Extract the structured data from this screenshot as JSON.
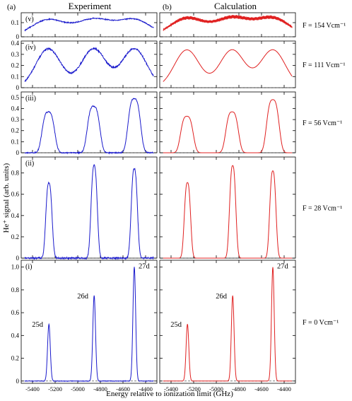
{
  "figure": {
    "left_header": "(a)",
    "left_title": "Experiment",
    "right_header": "(b)",
    "right_title": "Calculation",
    "ylabel": "He⁺ signal (arb. units)",
    "xlabel": "Energy relative to ionization limit (GHz)"
  },
  "colors": {
    "experiment": "#1a1acc",
    "calculation": "#e02020",
    "baseline": "#555555"
  },
  "chart_data": {
    "type": "line",
    "xlim": [
      -5500,
      -4300
    ],
    "xticks": [
      -5400,
      -5200,
      -5000,
      -4800,
      -4600,
      -4400
    ],
    "xtick_labels": [
      "-5400",
      "-5200",
      "-5000",
      "-4800",
      "-4600",
      "-4400"
    ],
    "columns": [
      "Experiment",
      "Calculation"
    ],
    "panels": [
      {
        "label": "(v)",
        "field": "F = 154 Vcm⁻¹",
        "ylim": [
          0,
          0.17
        ],
        "yticks": [
          0,
          0.1
        ],
        "ytick_labels": [
          "0",
          "0.1"
        ],
        "series": [
          {
            "column": "Experiment",
            "centers": [
              -5260,
              -4860,
              -4500
            ],
            "peak": 0.12,
            "width": 150,
            "shape": "broad"
          },
          {
            "column": "Calculation",
            "centers": [
              -5260,
              -4860,
              -4500
            ],
            "peak": 0.13,
            "width": 150,
            "shape": "broad"
          }
        ]
      },
      {
        "label": "(iv)",
        "field": "F = 111 Vcm⁻¹",
        "ylim": [
          0,
          0.42
        ],
        "yticks": [
          0,
          0.1,
          0.2,
          0.3,
          0.4
        ],
        "ytick_labels": [
          "0",
          "0.1",
          "0.2",
          "0.3",
          "0.4"
        ],
        "series": [
          {
            "column": "Experiment",
            "centers": [
              -5260,
              -4860,
              -4500
            ],
            "peak": 0.35,
            "width": 110,
            "shape": "broad"
          },
          {
            "column": "Calculation",
            "centers": [
              -5260,
              -4860,
              -4500
            ],
            "peak": 0.34,
            "width": 110,
            "shape": "broad"
          }
        ]
      },
      {
        "label": "(iii)",
        "field": "F = 56 Vcm⁻¹",
        "ylim": [
          0,
          0.55
        ],
        "yticks": [
          0,
          0.1,
          0.2,
          0.3,
          0.4,
          0.5
        ],
        "ytick_labels": [
          "0",
          "0.1",
          "0.2",
          "0.3",
          "0.4",
          "0.5"
        ],
        "series": [
          {
            "column": "Experiment",
            "centers": [
              -5260,
              -4860,
              -4500
            ],
            "peaks": [
              0.37,
              0.42,
              0.49
            ],
            "width": 55,
            "shape": "medium"
          },
          {
            "column": "Calculation",
            "centers": [
              -5260,
              -4860,
              -4500
            ],
            "peaks": [
              0.33,
              0.37,
              0.48
            ],
            "width": 55,
            "shape": "medium"
          }
        ]
      },
      {
        "label": "(ii)",
        "field": "F = 28 Vcm⁻¹",
        "ylim": [
          0,
          0.95
        ],
        "yticks": [
          0,
          0.2,
          0.4,
          0.6,
          0.8
        ],
        "ytick_labels": [
          "0",
          "0.2",
          "0.4",
          "0.6",
          "0.8"
        ],
        "series": [
          {
            "column": "Experiment",
            "centers": [
              -5255,
              -4855,
              -4500
            ],
            "peaks": [
              0.71,
              0.87,
              0.84
            ],
            "width": 30,
            "shape": "narrow"
          },
          {
            "column": "Calculation",
            "centers": [
              -5255,
              -4855,
              -4500
            ],
            "peaks": [
              0.71,
              0.87,
              0.82
            ],
            "width": 30,
            "shape": "narrow"
          }
        ]
      },
      {
        "label": "(i)",
        "field": "F = 0 Vcm⁻¹",
        "ylim": [
          -0.02,
          1.06
        ],
        "yticks": [
          0,
          0.2,
          0.4,
          0.6,
          0.8,
          1.0
        ],
        "ytick_labels": [
          "0",
          "0.2",
          "0.4",
          "0.6",
          "0.8",
          "1.0"
        ],
        "peak_labels": [
          "25d",
          "26d",
          "27d"
        ],
        "series": [
          {
            "column": "Experiment",
            "centers": [
              -5255,
              -4855,
              -4500
            ],
            "peaks": [
              0.5,
              0.75,
              1.0
            ],
            "width": 12,
            "shape": "sharp"
          },
          {
            "column": "Calculation",
            "centers": [
              -5255,
              -4855,
              -4500
            ],
            "peaks": [
              0.5,
              0.75,
              1.0
            ],
            "width": 12,
            "shape": "sharp"
          }
        ]
      }
    ]
  }
}
